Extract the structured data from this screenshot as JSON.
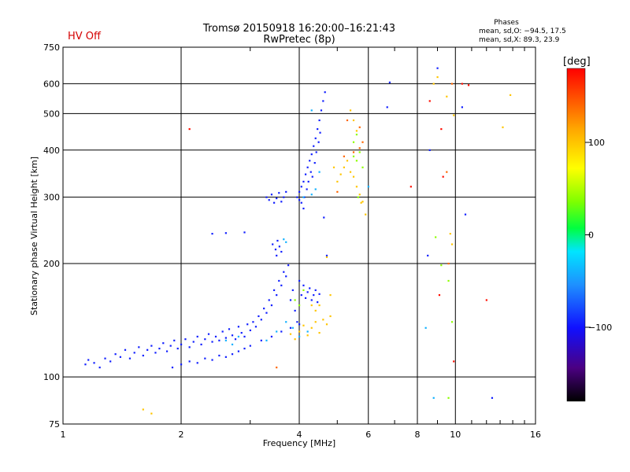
{
  "header": {
    "status": "HV Off",
    "status_color": "#d40000",
    "title_line1": "Tromsø 20150918 16:20:00–16:21:43",
    "title_line2": "RwPretec (8p)",
    "phases_title": "Phases",
    "phases_line1": "mean, sd,O: −94.5, 17.5",
    "phases_line2": "mean, sd,X:  89.3, 23.9"
  },
  "chart_data": {
    "type": "scatter",
    "title": "Tromsø 20150918 16:20:00–16:21:43",
    "subtitle": "RwPretec (8p)",
    "xlabel": "Frequency [MHz]",
    "ylabel": "Stationary phase Virtual Height [km]",
    "x_scale": "log",
    "y_scale": "log",
    "xlim": [
      1,
      16
    ],
    "ylim": [
      75,
      750
    ],
    "x_ticks": [
      1,
      2,
      4,
      6,
      8,
      10,
      16
    ],
    "x_tick_labels": [
      "1",
      "2",
      "4",
      "6",
      "8",
      "10",
      "16"
    ],
    "y_ticks": [
      75,
      100,
      200,
      300,
      400,
      500,
      600,
      750
    ],
    "y_tick_labels": [
      "75",
      "100",
      "200",
      "300",
      "400",
      "500",
      "600",
      "750"
    ],
    "grid": true,
    "colorbar": {
      "label": "[deg]",
      "range": [
        -180,
        180
      ],
      "ticks": [
        100,
        0,
        -100
      ],
      "tick_labels": [
        "100",
        "0",
        "−100"
      ],
      "colormap": "rainbow"
    },
    "series": [
      {
        "phase_deg": -95,
        "points": [
          [
            1.14,
            108
          ],
          [
            1.16,
            111
          ],
          [
            1.2,
            109
          ],
          [
            1.24,
            106
          ],
          [
            1.28,
            112
          ],
          [
            1.32,
            110
          ],
          [
            1.36,
            115
          ],
          [
            1.4,
            113
          ],
          [
            1.44,
            118
          ],
          [
            1.48,
            112
          ],
          [
            1.52,
            116
          ],
          [
            1.56,
            120
          ],
          [
            1.6,
            114
          ],
          [
            1.64,
            118
          ],
          [
            1.68,
            121
          ],
          [
            1.72,
            116
          ],
          [
            1.76,
            119
          ],
          [
            1.8,
            123
          ],
          [
            1.84,
            117
          ],
          [
            1.88,
            121
          ],
          [
            1.92,
            125
          ],
          [
            1.96,
            119
          ],
          [
            2.0,
            122
          ],
          [
            2.05,
            126
          ],
          [
            2.1,
            120
          ],
          [
            2.15,
            124
          ],
          [
            2.2,
            128
          ],
          [
            2.25,
            122
          ],
          [
            2.3,
            126
          ],
          [
            2.35,
            130
          ],
          [
            2.4,
            124
          ],
          [
            2.45,
            128
          ],
          [
            2.5,
            125
          ],
          [
            2.55,
            132
          ],
          [
            2.6,
            127
          ],
          [
            2.65,
            134
          ],
          [
            2.7,
            129
          ],
          [
            2.75,
            126
          ],
          [
            2.8,
            136
          ],
          [
            2.85,
            131
          ],
          [
            2.9,
            128
          ],
          [
            2.95,
            138
          ],
          [
            3.0,
            133
          ],
          [
            3.05,
            140
          ],
          [
            3.1,
            136
          ],
          [
            3.15,
            145
          ],
          [
            3.2,
            142
          ],
          [
            3.25,
            152
          ],
          [
            3.3,
            148
          ],
          [
            3.35,
            160
          ],
          [
            3.4,
            155
          ],
          [
            3.45,
            170
          ],
          [
            3.5,
            165
          ],
          [
            3.55,
            180
          ],
          [
            3.6,
            175
          ],
          [
            3.65,
            190
          ],
          [
            3.7,
            185
          ],
          [
            3.75,
            198
          ],
          [
            3.8,
            160
          ],
          [
            3.85,
            170
          ],
          [
            3.9,
            150
          ],
          [
            3.95,
            140
          ],
          [
            4.0,
            180
          ],
          [
            4.05,
            165
          ],
          [
            4.1,
            175
          ],
          [
            4.15,
            162
          ],
          [
            4.2,
            168
          ],
          [
            4.25,
            172
          ],
          [
            4.3,
            160
          ],
          [
            4.35,
            165
          ],
          [
            4.4,
            170
          ],
          [
            4.45,
            158
          ],
          [
            4.5,
            166
          ],
          [
            1.9,
            106
          ],
          [
            2.0,
            108
          ],
          [
            2.1,
            110
          ],
          [
            2.2,
            109
          ],
          [
            2.3,
            112
          ],
          [
            2.4,
            111
          ],
          [
            2.5,
            114
          ],
          [
            2.6,
            113
          ],
          [
            2.7,
            115
          ],
          [
            2.8,
            117
          ],
          [
            2.9,
            119
          ],
          [
            3.0,
            121
          ],
          [
            3.2,
            125
          ],
          [
            3.4,
            128
          ],
          [
            3.6,
            132
          ],
          [
            3.8,
            135
          ],
          [
            4.0,
            138
          ],
          [
            2.4,
            240
          ],
          [
            2.6,
            241
          ],
          [
            2.9,
            242
          ],
          [
            3.3,
            300
          ],
          [
            3.35,
            295
          ],
          [
            3.4,
            305
          ],
          [
            3.45,
            290
          ],
          [
            3.5,
            298
          ],
          [
            3.55,
            308
          ],
          [
            3.6,
            292
          ],
          [
            3.65,
            300
          ],
          [
            3.7,
            310
          ],
          [
            3.42,
            225
          ],
          [
            3.48,
            218
          ],
          [
            3.52,
            230
          ],
          [
            3.56,
            222
          ],
          [
            3.6,
            215
          ],
          [
            3.5,
            210
          ],
          [
            3.95,
            300
          ],
          [
            4.0,
            310
          ],
          [
            4.05,
            320
          ],
          [
            4.1,
            330
          ],
          [
            4.15,
            345
          ],
          [
            4.2,
            360
          ],
          [
            4.25,
            375
          ],
          [
            4.3,
            390
          ],
          [
            4.35,
            410
          ],
          [
            4.4,
            430
          ],
          [
            4.45,
            455
          ],
          [
            4.5,
            480
          ],
          [
            4.55,
            510
          ],
          [
            4.6,
            540
          ],
          [
            4.65,
            570
          ],
          [
            4.12,
            300
          ],
          [
            4.18,
            315
          ],
          [
            4.22,
            330
          ],
          [
            4.28,
            350
          ],
          [
            4.32,
            340
          ],
          [
            4.38,
            370
          ],
          [
            4.42,
            395
          ],
          [
            4.48,
            420
          ],
          [
            4.52,
            445
          ],
          [
            4.05,
            290
          ],
          [
            4.1,
            280
          ],
          [
            4.0,
            295
          ],
          [
            4.62,
            265
          ],
          [
            4.7,
            210
          ],
          [
            6.8,
            605
          ],
          [
            6.7,
            520
          ],
          [
            8.5,
            210
          ],
          [
            8.6,
            400
          ],
          [
            9.0,
            660
          ],
          [
            10.4,
            520
          ],
          [
            10.6,
            270
          ],
          [
            12.4,
            88
          ]
        ]
      },
      {
        "phase_deg": -40,
        "points": [
          [
            2.6,
            125
          ],
          [
            2.7,
            122
          ],
          [
            2.8,
            128
          ],
          [
            3.3,
            125
          ],
          [
            3.5,
            132
          ],
          [
            3.7,
            140
          ],
          [
            3.85,
            135
          ],
          [
            4.0,
            128
          ],
          [
            4.2,
            132
          ],
          [
            4.1,
            300
          ],
          [
            4.3,
            305
          ],
          [
            4.4,
            315
          ],
          [
            4.5,
            350
          ],
          [
            3.65,
            232
          ],
          [
            3.7,
            228
          ],
          [
            8.4,
            135
          ],
          [
            8.8,
            88
          ],
          [
            6.0,
            320
          ],
          [
            4.3,
            510
          ]
        ]
      },
      {
        "phase_deg": 40,
        "points": [
          [
            3.9,
            160
          ],
          [
            4.0,
            155
          ],
          [
            4.1,
            170
          ],
          [
            5.5,
            385
          ],
          [
            5.6,
            375
          ],
          [
            5.7,
            395
          ],
          [
            5.8,
            360
          ],
          [
            8.9,
            235
          ],
          [
            9.2,
            198
          ],
          [
            9.6,
            180
          ],
          [
            9.8,
            140
          ],
          [
            5.5,
            420
          ],
          [
            5.6,
            440
          ],
          [
            5.65,
            300
          ],
          [
            9.6,
            88
          ]
        ]
      },
      {
        "phase_deg": 100,
        "points": [
          [
            3.8,
            130
          ],
          [
            3.9,
            126
          ],
          [
            4.0,
            132
          ],
          [
            4.1,
            137
          ],
          [
            4.2,
            129
          ],
          [
            4.3,
            135
          ],
          [
            4.4,
            140
          ],
          [
            4.5,
            131
          ],
          [
            4.6,
            142
          ],
          [
            4.7,
            138
          ],
          [
            4.8,
            145
          ],
          [
            4.4,
            150
          ],
          [
            4.3,
            155
          ],
          [
            5.0,
            330
          ],
          [
            5.1,
            345
          ],
          [
            5.2,
            360
          ],
          [
            5.3,
            375
          ],
          [
            5.4,
            350
          ],
          [
            5.5,
            340
          ],
          [
            5.6,
            320
          ],
          [
            5.7,
            305
          ],
          [
            5.75,
            290
          ],
          [
            5.8,
            292
          ],
          [
            5.6,
            450
          ],
          [
            5.5,
            480
          ],
          [
            5.4,
            510
          ],
          [
            4.9,
            360
          ],
          [
            4.8,
            165
          ],
          [
            4.7,
            208
          ],
          [
            9.0,
            625
          ],
          [
            9.5,
            555
          ],
          [
            9.9,
            495
          ],
          [
            9.7,
            240
          ],
          [
            9.8,
            225
          ],
          [
            13.2,
            460
          ],
          [
            13.8,
            560
          ],
          [
            8.8,
            600
          ],
          [
            1.68,
            80
          ],
          [
            1.6,
            82
          ],
          [
            5.9,
            270
          ],
          [
            4.5,
            155
          ]
        ]
      },
      {
        "phase_deg": 140,
        "points": [
          [
            5.2,
            385
          ],
          [
            5.5,
            395
          ],
          [
            5.7,
            405
          ],
          [
            5.8,
            420
          ],
          [
            9.5,
            350
          ],
          [
            9.6,
            200
          ],
          [
            9.8,
            600
          ],
          [
            3.5,
            106
          ],
          [
            5.3,
            480
          ],
          [
            5.7,
            460
          ],
          [
            5.0,
            310
          ]
        ]
      },
      {
        "phase_deg": 175,
        "points": [
          [
            2.1,
            455
          ],
          [
            7.7,
            320
          ],
          [
            9.2,
            455
          ],
          [
            10.4,
            600
          ],
          [
            10.8,
            595
          ],
          [
            12.0,
            160
          ],
          [
            9.9,
            110
          ],
          [
            8.6,
            540
          ],
          [
            9.1,
            165
          ],
          [
            9.3,
            340
          ]
        ]
      }
    ]
  }
}
